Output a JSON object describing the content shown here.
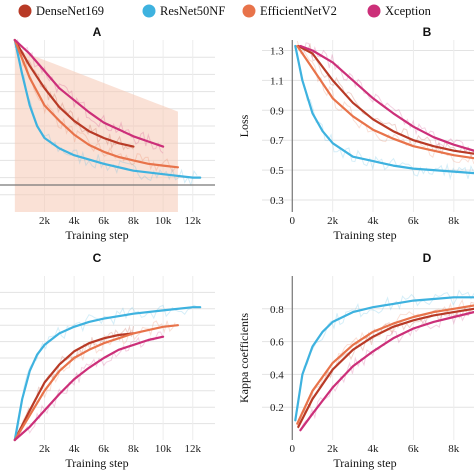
{
  "legend": [
    {
      "name": "DenseNet169",
      "color": "#b83a26"
    },
    {
      "name": "ResNet50NF",
      "color": "#3eb2df"
    },
    {
      "name": "EfficientNetV2",
      "color": "#e8734a"
    },
    {
      "name": "Xception",
      "color": "#cc2f79"
    }
  ],
  "chart_data": [
    {
      "panel": "A",
      "type": "line",
      "xlabel": "Training step",
      "ylabel": "",
      "xlim": [
        -1000,
        13500
      ],
      "ylim": [
        0,
        1
      ],
      "xticks": [
        "2k",
        "4k",
        "6k",
        "8k",
        "10k",
        "12k"
      ],
      "xtick_values": [
        2000,
        4000,
        6000,
        8000,
        10000,
        12000
      ],
      "yticks": [],
      "series": [
        {
          "name": "DenseNet169",
          "x": [
            0,
            1000,
            2000,
            3000,
            4000,
            5000,
            6000,
            7000,
            8000
          ],
          "y": [
            1.0,
            0.85,
            0.72,
            0.61,
            0.53,
            0.47,
            0.43,
            0.4,
            0.38
          ]
        },
        {
          "name": "ResNet50NF",
          "x": [
            0,
            500,
            1000,
            1500,
            2000,
            3000,
            4000,
            6000,
            8000,
            10000,
            12000,
            12500
          ],
          "y": [
            1.0,
            0.8,
            0.62,
            0.5,
            0.43,
            0.37,
            0.33,
            0.28,
            0.24,
            0.22,
            0.2,
            0.2
          ]
        },
        {
          "name": "EfficientNetV2",
          "x": [
            0,
            1000,
            2000,
            3000,
            4000,
            5000,
            6000,
            7000,
            8000,
            9000,
            10000,
            11000
          ],
          "y": [
            1.0,
            0.78,
            0.62,
            0.53,
            0.45,
            0.39,
            0.35,
            0.32,
            0.3,
            0.28,
            0.27,
            0.26
          ]
        },
        {
          "name": "Xception",
          "x": [
            0,
            1000,
            2000,
            3000,
            4000,
            5000,
            6000,
            7000,
            8000,
            9000,
            10000
          ],
          "y": [
            1.0,
            0.92,
            0.82,
            0.72,
            0.65,
            0.58,
            0.52,
            0.48,
            0.44,
            0.41,
            0.38
          ]
        }
      ]
    },
    {
      "panel": "B",
      "type": "line",
      "xlabel": "Training step",
      "ylabel": "Loss",
      "xlim": [
        -1500,
        9000
      ],
      "ylim": [
        0.22,
        1.37
      ],
      "xticks": [
        "0",
        "2k",
        "4k",
        "6k",
        "8k"
      ],
      "xtick_values": [
        0,
        2000,
        4000,
        6000,
        8000
      ],
      "yticks": [
        "1.3",
        "1.1",
        "0.9",
        "0.7",
        "0.5",
        "0.3"
      ],
      "ytick_values": [
        1.3,
        1.1,
        0.9,
        0.7,
        0.5,
        0.3
      ],
      "series": [
        {
          "name": "DenseNet169",
          "x": [
            300,
            1000,
            2000,
            3000,
            4000,
            5000,
            6000,
            7000,
            8000,
            9000
          ],
          "y": [
            1.33,
            1.28,
            1.1,
            0.95,
            0.84,
            0.76,
            0.7,
            0.66,
            0.63,
            0.61
          ]
        },
        {
          "name": "ResNet50NF",
          "x": [
            150,
            500,
            1000,
            1500,
            2000,
            3000,
            4000,
            5000,
            6000,
            7000,
            8000,
            9000
          ],
          "y": [
            1.33,
            1.1,
            0.88,
            0.76,
            0.68,
            0.59,
            0.56,
            0.53,
            0.51,
            0.5,
            0.49,
            0.48
          ]
        },
        {
          "name": "EfficientNetV2",
          "x": [
            250,
            1000,
            2000,
            3000,
            4000,
            5000,
            6000,
            7000,
            8000,
            9000
          ],
          "y": [
            1.33,
            1.18,
            0.98,
            0.86,
            0.77,
            0.71,
            0.66,
            0.63,
            0.6,
            0.58
          ]
        },
        {
          "name": "Xception",
          "x": [
            400,
            1000,
            2000,
            3000,
            4000,
            5000,
            6000,
            7000,
            8000,
            9000
          ],
          "y": [
            1.33,
            1.3,
            1.22,
            1.1,
            0.98,
            0.88,
            0.79,
            0.72,
            0.67,
            0.63
          ]
        }
      ]
    },
    {
      "panel": "C",
      "type": "line",
      "xlabel": "Training step",
      "ylabel": "",
      "xlim": [
        -1000,
        13500
      ],
      "ylim": [
        0,
        1
      ],
      "xticks": [
        "2k",
        "4k",
        "6k",
        "8k",
        "10k",
        "12k"
      ],
      "xtick_values": [
        2000,
        4000,
        6000,
        8000,
        10000,
        12000
      ],
      "yticks": [],
      "series": [
        {
          "name": "DenseNet169",
          "x": [
            0,
            1000,
            2000,
            3000,
            4000,
            5000,
            6000,
            7000,
            8000
          ],
          "y": [
            0.0,
            0.18,
            0.35,
            0.46,
            0.54,
            0.59,
            0.62,
            0.64,
            0.65
          ]
        },
        {
          "name": "ResNet50NF",
          "x": [
            0,
            500,
            1000,
            1500,
            2000,
            3000,
            4000,
            5000,
            6000,
            8000,
            10000,
            12000,
            12500
          ],
          "y": [
            0.0,
            0.25,
            0.42,
            0.52,
            0.58,
            0.65,
            0.69,
            0.72,
            0.74,
            0.77,
            0.79,
            0.81,
            0.81
          ]
        },
        {
          "name": "EfficientNetV2",
          "x": [
            0,
            1000,
            2000,
            3000,
            4000,
            5000,
            6000,
            7000,
            8000,
            9000,
            10000,
            11000
          ],
          "y": [
            0.0,
            0.15,
            0.3,
            0.42,
            0.5,
            0.55,
            0.59,
            0.62,
            0.65,
            0.67,
            0.69,
            0.7
          ]
        },
        {
          "name": "Xception",
          "x": [
            0,
            1000,
            2000,
            3000,
            4000,
            5000,
            6000,
            7000,
            8000,
            9000,
            10000
          ],
          "y": [
            0.0,
            0.08,
            0.18,
            0.28,
            0.37,
            0.44,
            0.5,
            0.55,
            0.58,
            0.61,
            0.63
          ]
        }
      ]
    },
    {
      "panel": "D",
      "type": "line",
      "xlabel": "Training step",
      "ylabel": "Kappa coefficients",
      "xlim": [
        -1500,
        9000
      ],
      "ylim": [
        0,
        1.0
      ],
      "xticks": [
        "0",
        "2k",
        "4k",
        "6k",
        "8k"
      ],
      "xtick_values": [
        0,
        2000,
        4000,
        6000,
        8000
      ],
      "yticks": [
        "0.8",
        "0.6",
        "0.4",
        "0.2"
      ],
      "ytick_values": [
        0.8,
        0.6,
        0.4,
        0.2
      ],
      "series": [
        {
          "name": "DenseNet169",
          "x": [
            300,
            1000,
            2000,
            3000,
            4000,
            5000,
            6000,
            7000,
            8000,
            9000
          ],
          "y": [
            0.08,
            0.25,
            0.43,
            0.55,
            0.63,
            0.69,
            0.73,
            0.76,
            0.78,
            0.8
          ]
        },
        {
          "name": "ResNet50NF",
          "x": [
            150,
            500,
            1000,
            1500,
            2000,
            3000,
            4000,
            5000,
            6000,
            7000,
            8000,
            9000
          ],
          "y": [
            0.12,
            0.4,
            0.57,
            0.66,
            0.72,
            0.78,
            0.81,
            0.83,
            0.85,
            0.86,
            0.87,
            0.87
          ]
        },
        {
          "name": "EfficientNetV2",
          "x": [
            250,
            1000,
            2000,
            3000,
            4000,
            5000,
            6000,
            7000,
            8000,
            9000
          ],
          "y": [
            0.1,
            0.3,
            0.47,
            0.58,
            0.66,
            0.71,
            0.75,
            0.78,
            0.8,
            0.82
          ]
        },
        {
          "name": "Xception",
          "x": [
            400,
            1000,
            2000,
            3000,
            4000,
            5000,
            6000,
            7000,
            8000,
            9000
          ],
          "y": [
            0.06,
            0.16,
            0.32,
            0.45,
            0.54,
            0.62,
            0.68,
            0.72,
            0.75,
            0.78
          ]
        }
      ]
    }
  ]
}
